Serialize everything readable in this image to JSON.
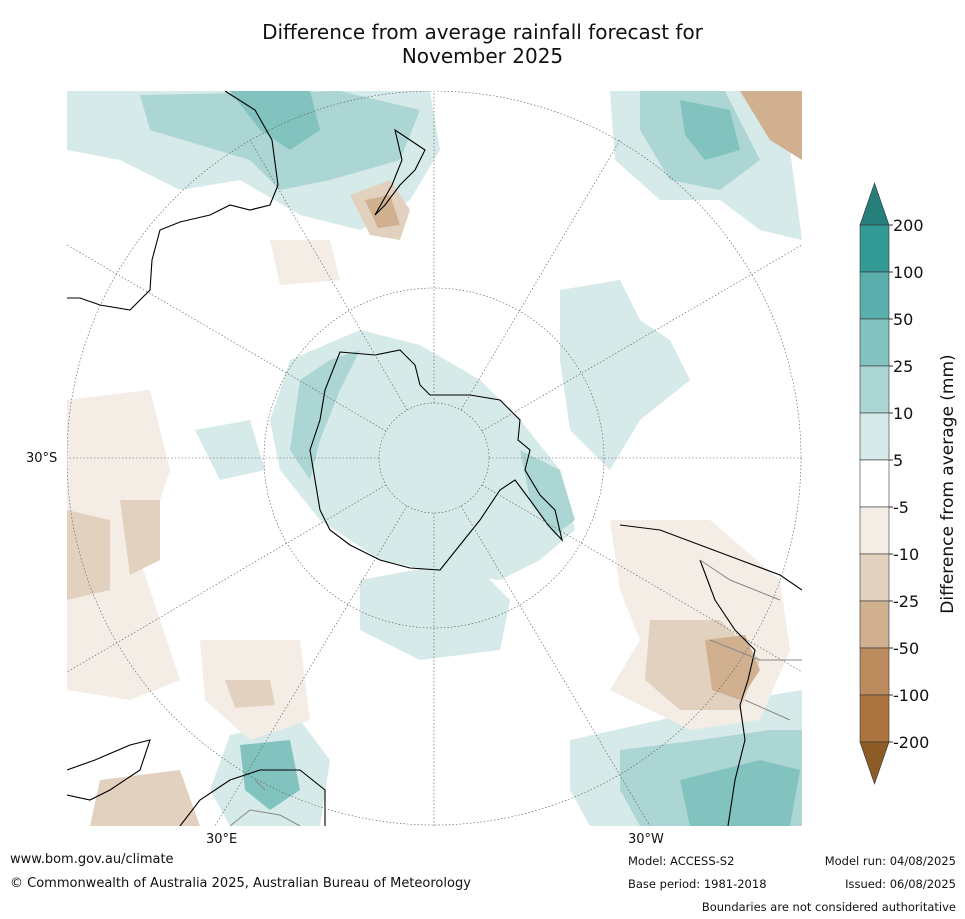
{
  "title": {
    "line1": "Difference from average rainfall forecast for",
    "line2": "November 2025"
  },
  "map": {
    "projection": "south-polar-stereographic",
    "labels": {
      "lat_left": "30°S",
      "lon_bottom_left": "30°E",
      "lon_bottom_right": "30°W"
    }
  },
  "legend": {
    "label": "Difference from average (mm)",
    "ticks": [
      "200",
      "100",
      "50",
      "25",
      "10",
      "5",
      "-5",
      "-10",
      "-25",
      "-50",
      "-100",
      "-200"
    ],
    "colors": {
      "gt200": "#277f7b",
      "100_200": "#339a96",
      "50_100": "#5aaeab",
      "25_50": "#82c2bf",
      "10_25": "#acd6d4",
      "5_10": "#d5eae9",
      "neutral": "#ffffff",
      "m10_m5": "#f3ede6",
      "m25_m10": "#e3d1c0",
      "m50_m25": "#d0b08f",
      "m100_m50": "#bc8c5e",
      "m200_m100": "#ab743e",
      "lt_m200": "#8d5b25"
    }
  },
  "footer": {
    "website": "www.bom.gov.au/climate",
    "copyright": "© Commonwealth of Australia 2025, Australian Bureau of Meteorology",
    "model": "Model: ACCESS-S2",
    "base_period": "Base period: 1981-2018",
    "model_run": "Model run: 04/08/2025",
    "issued": "Issued: 06/08/2025",
    "disclaimer": "Boundaries are not considered authoritative"
  }
}
